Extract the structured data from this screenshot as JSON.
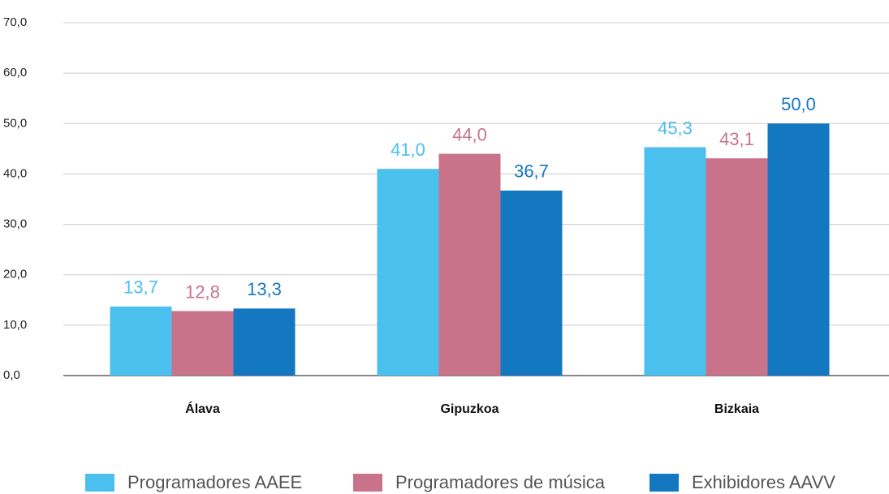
{
  "chart_data": {
    "type": "bar",
    "categories": [
      "Álava",
      "Gipuzkoa",
      "Bizkaia"
    ],
    "series": [
      {
        "name": "Programadores AAEE",
        "color": "#4bbfed",
        "values": [
          13.7,
          41.0,
          45.3
        ],
        "value_labels": [
          "13,7",
          "41,0",
          "45,3"
        ]
      },
      {
        "name": "Programadores de música",
        "color": "#c9738a",
        "values": [
          12.8,
          44.0,
          43.1
        ],
        "value_labels": [
          "12,8",
          "44,0",
          "43,1"
        ]
      },
      {
        "name": "Exhibidores AAVV",
        "color": "#1478c0",
        "values": [
          13.3,
          36.7,
          50.0
        ],
        "value_labels": [
          "13,3",
          "36,7",
          "50,0"
        ]
      }
    ],
    "ylim": [
      0,
      70
    ],
    "yticks": [
      {
        "value": 0,
        "label": "0,0"
      },
      {
        "value": 10,
        "label": "10,0"
      },
      {
        "value": 20,
        "label": "20,0"
      },
      {
        "value": 30,
        "label": "30,0"
      },
      {
        "value": 40,
        "label": "40,0"
      },
      {
        "value": 50,
        "label": "50,0"
      },
      {
        "value": 60,
        "label": "60,0"
      },
      {
        "value": 70,
        "label": "70,0"
      }
    ],
    "grid": true,
    "legend": "bottom"
  }
}
